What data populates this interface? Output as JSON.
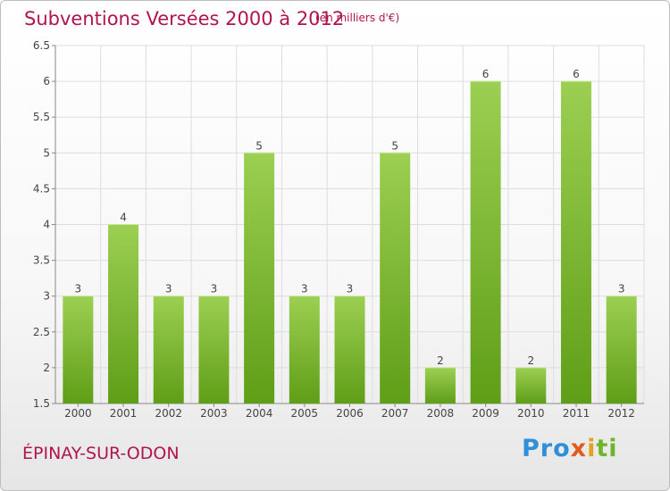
{
  "header": {
    "title": "Subventions Versées 2000 à 2012",
    "subtitle": "(en milliers d'€)"
  },
  "footer": {
    "commune": "ÉPINAY-SUR-ODON",
    "logo_parts": [
      "Pro",
      "x",
      "i",
      "ti"
    ]
  },
  "colors": {
    "title": "#b0154f",
    "bar_top": "#9ccf52",
    "bar_bottom": "#5f9e17",
    "grid": "#dddddd"
  },
  "chart_data": {
    "type": "bar",
    "title": "Subventions Versées 2000 à 2012",
    "subtitle": "(en milliers d'€)",
    "categories": [
      "2000",
      "2001",
      "2002",
      "2003",
      "2004",
      "2005",
      "2006",
      "2007",
      "2008",
      "2009",
      "2010",
      "2011",
      "2012"
    ],
    "values": [
      3,
      4,
      3,
      3,
      5,
      3,
      3,
      5,
      2,
      6,
      2,
      6,
      3
    ],
    "labels": [
      "3",
      "4",
      "3",
      "3",
      "5",
      "3",
      "3",
      "5",
      "2",
      "6",
      "2",
      "6",
      "3"
    ],
    "ylim": [
      1.5,
      6.5
    ],
    "yticks": [
      "1.5",
      "2",
      "2.5",
      "3",
      "3.5",
      "4",
      "4.5",
      "5",
      "5.5",
      "6",
      "6.5"
    ],
    "grid": true
  }
}
